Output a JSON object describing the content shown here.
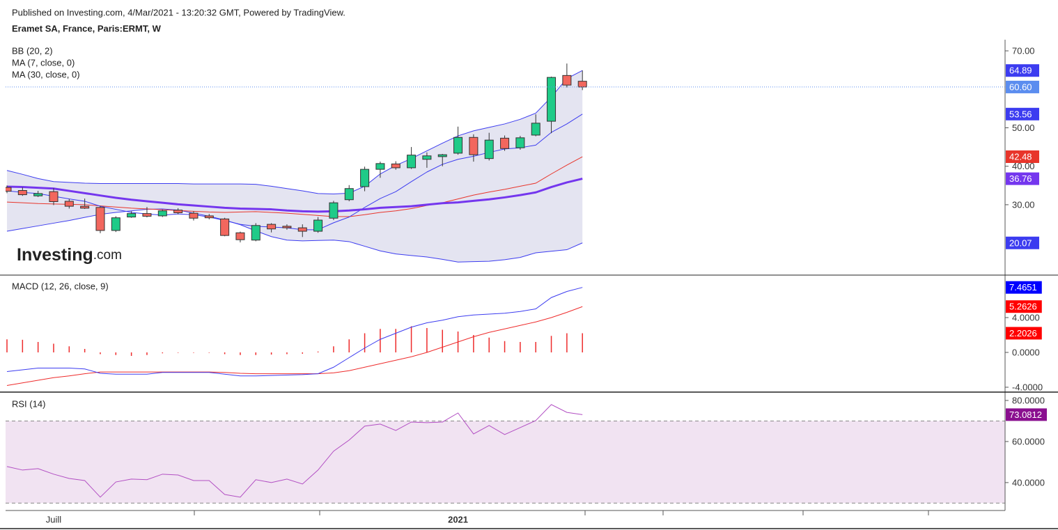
{
  "header": {
    "published": "Published on Investing.com, 4/Mar/2021 - 13:20:32 GMT, Powered by TradingView.",
    "symbol": "Eramet SA, France, Paris:ERMT, W"
  },
  "logo": {
    "name": "Investing",
    "suffix": ".com"
  },
  "chart_data": [
    {
      "type": "candlestick",
      "ylim": [
        11.7,
        72.9
      ],
      "yticks": [
        {
          "value": 30,
          "label": "30.00"
        },
        {
          "value": 40,
          "label": "40.00"
        },
        {
          "value": 50,
          "label": "50.00"
        },
        {
          "value": 70,
          "label": "70.00"
        }
      ],
      "up_color": "#1fcb88",
      "down_color": "#f2675e",
      "last_color": "#5b8def",
      "open": [
        34.5,
        33.7,
        32.3,
        33.4,
        30.9,
        29.6,
        29.3,
        23.3,
        26.8,
        27.7,
        27.1,
        28.6,
        27.8,
        27.1,
        26.3,
        22.7,
        20.8,
        24.9,
        24.4,
        24.0,
        23.1,
        26.5,
        31.3,
        34.7,
        39.2,
        40.6,
        39.6,
        41.8,
        42.5,
        43.4,
        47.5,
        42.0,
        47.3,
        44.8,
        48.1,
        51.7,
        63.6,
        62.1
      ],
      "high": [
        35.0,
        34.5,
        33.6,
        34.3,
        31.5,
        31.6,
        29.7,
        27.0,
        28.3,
        29.4,
        28.7,
        29.1,
        28.3,
        27.6,
        26.6,
        23.0,
        25.2,
        25.2,
        24.9,
        24.9,
        26.8,
        31.0,
        35.1,
        39.9,
        41.2,
        41.3,
        45.0,
        43.6,
        43.2,
        50.3,
        48.3,
        48.7,
        48.0,
        47.9,
        53.5,
        63.3,
        66.7,
        64.9
      ],
      "low": [
        33.0,
        32.3,
        32.0,
        29.9,
        29.0,
        28.9,
        22.6,
        22.9,
        26.6,
        26.7,
        26.8,
        27.5,
        25.9,
        26.2,
        21.8,
        20.2,
        20.5,
        22.8,
        23.5,
        21.6,
        22.7,
        26.0,
        30.9,
        33.5,
        37.0,
        39.1,
        39.3,
        39.6,
        40.0,
        43.0,
        41.2,
        41.5,
        44.0,
        44.3,
        47.8,
        48.6,
        60.5,
        59.8
      ],
      "close": [
        33.5,
        32.6,
        32.9,
        30.8,
        29.6,
        29.1,
        23.3,
        26.6,
        27.7,
        27.0,
        28.4,
        27.9,
        26.5,
        26.6,
        22.0,
        20.9,
        24.6,
        23.7,
        24.0,
        23.1,
        26.0,
        30.5,
        34.2,
        39.2,
        40.7,
        39.6,
        42.9,
        42.7,
        43.0,
        47.5,
        43.0,
        46.8,
        44.6,
        47.4,
        51.2,
        63.1,
        61.1,
        60.6
      ],
      "close_label": "60.60",
      "indicators": [
        {
          "name": "BB (20, 2)",
          "color": "#3c3cf0",
          "basis_color": "#e8352b",
          "fill": "#e4e4f1",
          "upper": [
            38.9,
            37.9,
            36.8,
            36.0,
            35.8,
            35.6,
            35.5,
            35.5,
            35.5,
            35.5,
            35.5,
            35.5,
            35.4,
            35.4,
            35.4,
            35.4,
            35.3,
            34.8,
            34.2,
            33.6,
            32.9,
            32.8,
            33.0,
            34.8,
            38.0,
            40.2,
            42.0,
            44.0,
            46.0,
            47.9,
            49.2,
            50.1,
            51.0,
            52.2,
            53.8,
            58.0,
            62.8,
            64.89
          ],
          "basis": [
            30.7,
            30.5,
            30.3,
            30.2,
            30.1,
            30.0,
            29.7,
            29.4,
            29.1,
            28.9,
            28.7,
            28.5,
            28.3,
            28.1,
            28.0,
            28.1,
            28.2,
            28.0,
            27.8,
            27.5,
            27.2,
            26.9,
            26.9,
            27.4,
            28.0,
            28.4,
            29.0,
            29.8,
            30.5,
            31.5,
            32.5,
            33.3,
            34.0,
            34.8,
            35.6,
            38.0,
            40.3,
            42.48
          ],
          "lower": [
            23.1,
            23.8,
            24.5,
            25.2,
            25.9,
            26.7,
            27.5,
            28.0,
            28.4,
            28.8,
            28.9,
            28.6,
            27.8,
            27.0,
            26.0,
            24.8,
            23.2,
            21.7,
            20.8,
            20.6,
            20.7,
            20.8,
            20.4,
            19.2,
            18.0,
            17.2,
            16.8,
            16.4,
            15.8,
            15.1,
            15.2,
            15.3,
            15.7,
            16.3,
            17.5,
            17.9,
            18.3,
            20.07
          ]
        },
        {
          "name": "MA (7, close, 0)",
          "color": "#3c3cf0",
          "line_width": 1,
          "values": [
            33.6,
            33.2,
            32.9,
            32.2,
            31.5,
            30.9,
            29.6,
            28.8,
            28.0,
            27.6,
            27.3,
            27.6,
            27.4,
            26.8,
            25.9,
            24.9,
            24.4,
            24.2,
            24.0,
            23.5,
            23.5,
            25.3,
            26.8,
            29.3,
            31.6,
            33.4,
            36.0,
            38.5,
            40.5,
            41.8,
            42.6,
            43.6,
            44.5,
            44.8,
            45.5,
            48.8,
            51.0,
            53.56
          ]
        },
        {
          "name": "MA (30, close, 0)",
          "color": "#7436ee",
          "line_width": 3,
          "values": [
            34.7,
            34.6,
            34.4,
            34.2,
            33.6,
            33.0,
            32.4,
            31.8,
            31.3,
            30.9,
            30.5,
            30.1,
            29.8,
            29.5,
            29.2,
            29.0,
            28.9,
            28.8,
            28.5,
            28.3,
            28.2,
            28.3,
            28.5,
            28.8,
            29.2,
            29.4,
            29.6,
            30.0,
            30.4,
            30.6,
            31.0,
            31.4,
            31.9,
            32.5,
            33.2,
            34.6,
            35.8,
            36.76
          ]
        }
      ]
    },
    {
      "type": "macd",
      "title": "MACD (12, 26, close, 9)",
      "ylim": [
        -4.56,
        8.88
      ],
      "yticks": [
        {
          "value": -4,
          "label": "-4.0000"
        },
        {
          "value": 0,
          "label": "0.0000"
        },
        {
          "value": 4,
          "label": "4.0000"
        }
      ],
      "macd": {
        "color": "#3c3cf0",
        "values": [
          -2.2,
          -2.0,
          -1.8,
          -1.8,
          -1.8,
          -1.9,
          -2.4,
          -2.5,
          -2.5,
          -2.5,
          -2.3,
          -2.3,
          -2.3,
          -2.3,
          -2.5,
          -2.7,
          -2.7,
          -2.65,
          -2.6,
          -2.55,
          -2.45,
          -1.7,
          -0.6,
          0.5,
          1.5,
          2.2,
          2.9,
          3.4,
          3.7,
          4.1,
          4.3,
          4.4,
          4.5,
          4.7,
          5.0,
          6.3,
          7.0,
          7.4651
        ]
      },
      "signal": {
        "color": "#ee2b2b",
        "values": [
          -3.8,
          -3.5,
          -3.2,
          -2.9,
          -2.7,
          -2.45,
          -2.25,
          -2.25,
          -2.25,
          -2.25,
          -2.25,
          -2.25,
          -2.25,
          -2.25,
          -2.3,
          -2.4,
          -2.45,
          -2.45,
          -2.45,
          -2.45,
          -2.45,
          -2.35,
          -2.1,
          -1.7,
          -1.3,
          -0.9,
          -0.5,
          0.0,
          0.6,
          1.2,
          1.8,
          2.3,
          2.7,
          3.1,
          3.5,
          4.0,
          4.6,
          5.2626
        ]
      },
      "histogram": {
        "color": "#ee2b2b",
        "values": [
          1.5,
          1.45,
          1.2,
          1.0,
          0.7,
          0.4,
          -0.2,
          -0.3,
          -0.4,
          -0.3,
          -0.1,
          -0.05,
          -0.05,
          -0.05,
          -0.2,
          -0.3,
          -0.3,
          -0.25,
          -0.2,
          -0.15,
          0.1,
          0.7,
          1.5,
          2.2,
          2.7,
          2.7,
          3.0,
          2.8,
          2.6,
          2.4,
          2.0,
          1.7,
          1.3,
          1.2,
          1.2,
          1.9,
          2.2,
          2.2026
        ]
      }
    },
    {
      "type": "line",
      "title": "RSI (14)",
      "ylim": [
        26.4,
        84.07
      ],
      "yticks": [
        {
          "value": 40,
          "label": "40.0000"
        },
        {
          "value": 60,
          "label": "60.0000"
        },
        {
          "value": 80,
          "label": "80.0000"
        }
      ],
      "bands": [
        30,
        70
      ],
      "band_fill": "#f1e3f2",
      "color": "#b24fc3",
      "label_color": "#8a0f8f",
      "categories": [
        null,
        null,
        null,
        "Juill",
        null,
        null,
        null,
        null,
        null,
        null,
        null,
        null,
        null,
        null,
        null,
        null,
        null,
        null,
        null,
        null,
        null,
        null,
        null,
        null,
        null,
        null,
        null,
        null,
        null,
        "2021",
        null,
        null,
        null,
        null,
        null,
        null,
        null,
        null
      ],
      "values": [
        47.8,
        46.1,
        46.8,
        44.1,
        42.0,
        41.0,
        32.9,
        40.3,
        41.7,
        41.4,
        44.1,
        43.7,
        41.0,
        41.0,
        34.2,
        32.9,
        41.4,
        40.0,
        41.7,
        39.3,
        46.1,
        55.3,
        60.7,
        67.5,
        68.5,
        65.4,
        69.5,
        69.2,
        69.5,
        73.9,
        63.7,
        67.8,
        63.4,
        66.8,
        70.2,
        78.0,
        74.2,
        73.0812
      ]
    }
  ]
}
